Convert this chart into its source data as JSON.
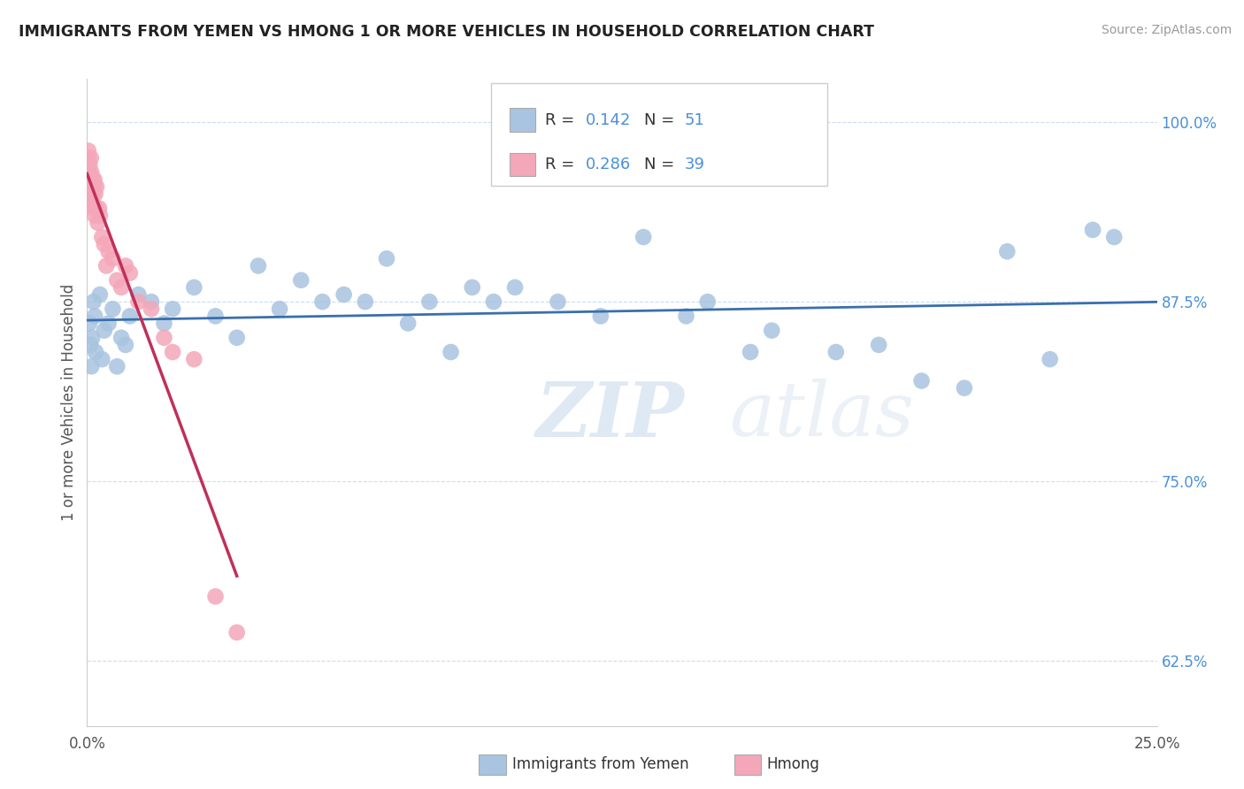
{
  "title": "IMMIGRANTS FROM YEMEN VS HMONG 1 OR MORE VEHICLES IN HOUSEHOLD CORRELATION CHART",
  "source": "Source: ZipAtlas.com",
  "ylabel": "1 or more Vehicles in Household",
  "y_ticks": [
    62.5,
    75.0,
    87.5,
    100.0
  ],
  "y_tick_labels": [
    "62.5%",
    "75.0%",
    "87.5%",
    "100.0%"
  ],
  "xlim": [
    0.0,
    25.0
  ],
  "ylim": [
    58.0,
    103.0
  ],
  "blue_color": "#a8c4e0",
  "pink_color": "#f4a7b9",
  "blue_line_color": "#3a6fad",
  "pink_line_color": "#c0305a",
  "r_blue": 0.142,
  "n_blue": 51,
  "r_pink": 0.286,
  "n_pink": 39,
  "legend_label_blue": "Immigrants from Yemen",
  "legend_label_pink": "Hmong",
  "watermark_zip": "ZIP",
  "watermark_atlas": "atlas",
  "blue_scatter_x": [
    0.05,
    0.08,
    0.1,
    0.12,
    0.15,
    0.18,
    0.2,
    0.3,
    0.35,
    0.4,
    0.5,
    0.6,
    0.7,
    0.8,
    0.9,
    1.0,
    1.2,
    1.5,
    1.8,
    2.0,
    2.5,
    3.0,
    3.5,
    4.0,
    4.5,
    5.0,
    5.5,
    6.0,
    6.5,
    7.0,
    7.5,
    8.0,
    8.5,
    9.0,
    9.5,
    10.0,
    11.0,
    12.0,
    13.0,
    14.0,
    14.5,
    15.5,
    16.0,
    17.5,
    18.5,
    19.5,
    20.5,
    21.5,
    22.5,
    23.5,
    24.0
  ],
  "blue_scatter_y": [
    86.0,
    84.5,
    83.0,
    85.0,
    87.5,
    86.5,
    84.0,
    88.0,
    83.5,
    85.5,
    86.0,
    87.0,
    83.0,
    85.0,
    84.5,
    86.5,
    88.0,
    87.5,
    86.0,
    87.0,
    88.5,
    86.5,
    85.0,
    90.0,
    87.0,
    89.0,
    87.5,
    88.0,
    87.5,
    90.5,
    86.0,
    87.5,
    84.0,
    88.5,
    87.5,
    88.5,
    87.5,
    86.5,
    92.0,
    86.5,
    87.5,
    84.0,
    85.5,
    84.0,
    84.5,
    82.0,
    81.5,
    91.0,
    83.5,
    92.5,
    92.0
  ],
  "pink_scatter_x": [
    0.02,
    0.03,
    0.04,
    0.05,
    0.06,
    0.07,
    0.08,
    0.09,
    0.1,
    0.11,
    0.12,
    0.13,
    0.14,
    0.15,
    0.16,
    0.17,
    0.18,
    0.19,
    0.2,
    0.22,
    0.25,
    0.28,
    0.3,
    0.35,
    0.4,
    0.45,
    0.5,
    0.6,
    0.7,
    0.8,
    0.9,
    1.0,
    1.2,
    1.5,
    1.8,
    2.0,
    2.5,
    3.0,
    3.5
  ],
  "pink_scatter_y": [
    97.5,
    98.0,
    96.5,
    95.5,
    97.0,
    96.0,
    95.0,
    97.5,
    96.5,
    95.5,
    94.5,
    96.0,
    95.0,
    94.0,
    95.5,
    96.0,
    93.5,
    95.0,
    94.0,
    95.5,
    93.0,
    94.0,
    93.5,
    92.0,
    91.5,
    90.0,
    91.0,
    90.5,
    89.0,
    88.5,
    90.0,
    89.5,
    87.5,
    87.0,
    85.0,
    84.0,
    83.5,
    67.0,
    64.5
  ]
}
